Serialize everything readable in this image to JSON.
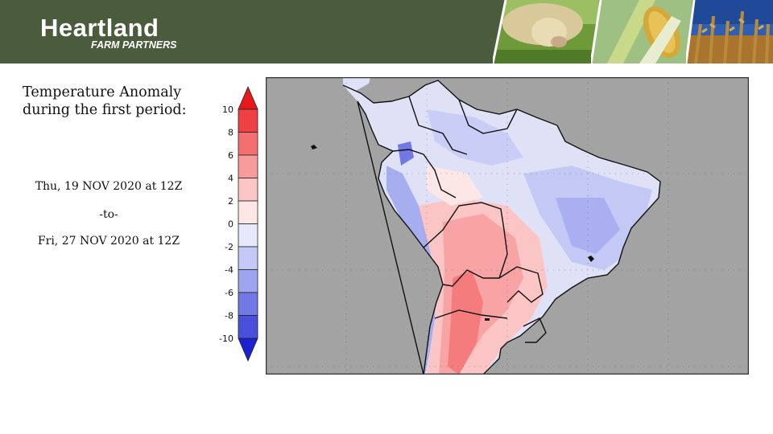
{
  "header": {
    "logo_name": "Heartland",
    "logo_tagline": "FARM PARTNERS",
    "photos": [
      "cow-grazing-photo",
      "corn-ear-photo",
      "soybean-field-photo"
    ],
    "banner_color": "#4a5c3c"
  },
  "left_panel": {
    "title_line1": "Temperature Anomaly",
    "title_line2": "during the first period:",
    "start": "Thu, 19 NOV 2020 at 12Z",
    "separator": "-to-",
    "end": "Fri, 27 NOV 2020 at 12Z"
  },
  "colorbar": {
    "ticks": [
      "10",
      "8",
      "6",
      "4",
      "2",
      "0",
      "-2",
      "-4",
      "-6",
      "-8",
      "-10"
    ],
    "warm_colors": [
      "#e8191c",
      "#ef4144",
      "#f46f70",
      "#f89b9b",
      "#fbc5c5",
      "#fde6e6"
    ],
    "cool_colors": [
      "#e6e8fb",
      "#c4c8f5",
      "#9ea4ee",
      "#7278e4",
      "#4a4fdc",
      "#1c22d0"
    ]
  },
  "map": {
    "region": "South America",
    "ocean_color": "#a3a3a3",
    "land_base_color": "#dfe2f7"
  }
}
